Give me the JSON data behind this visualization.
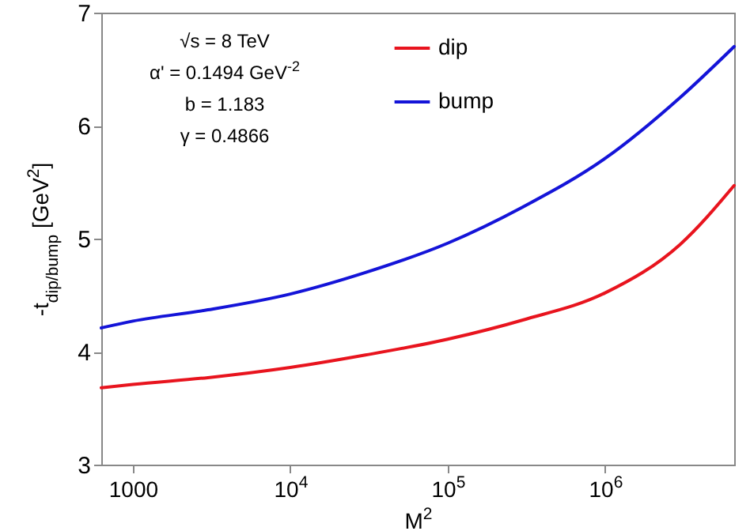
{
  "chart_data": {
    "type": "line",
    "xlabel": "M$^{2}$",
    "ylabel": "-t$_{dip/bump}$ [GeV$^{2}$]",
    "annotations": [
      "√s = 8 TeV",
      "α' = 0.1494 GeV$^{-2}$",
      "b = 1.183",
      "γ = 0.4866"
    ],
    "x": [
      630,
      1000,
      3000,
      10000,
      30000,
      100000,
      300000,
      1000000,
      3000000,
      6600000
    ],
    "series": [
      {
        "name": "dip",
        "color": "#e8141e",
        "values": [
          3.68,
          3.71,
          3.77,
          3.86,
          3.97,
          4.11,
          4.28,
          4.52,
          4.95,
          5.47
        ]
      },
      {
        "name": "bump",
        "color": "#1414d8",
        "values": [
          4.21,
          4.27,
          4.37,
          4.51,
          4.7,
          4.96,
          5.28,
          5.71,
          6.25,
          6.7
        ]
      }
    ],
    "log": "x",
    "xlim": [
      630,
      6600000
    ],
    "xticks": [
      1000,
      {
        "value": 10000,
        "label": "10$^{4}$"
      },
      {
        "value": 100000,
        "label": "10$^{5}$"
      },
      {
        "value": 1000000,
        "label": "10$^{6}$"
      }
    ],
    "ylim": [
      3,
      7
    ],
    "yticks": [
      3,
      4,
      5,
      6,
      7
    ],
    "legend": "top",
    "grid": false,
    "marker": "none",
    "line_style": "solid"
  }
}
